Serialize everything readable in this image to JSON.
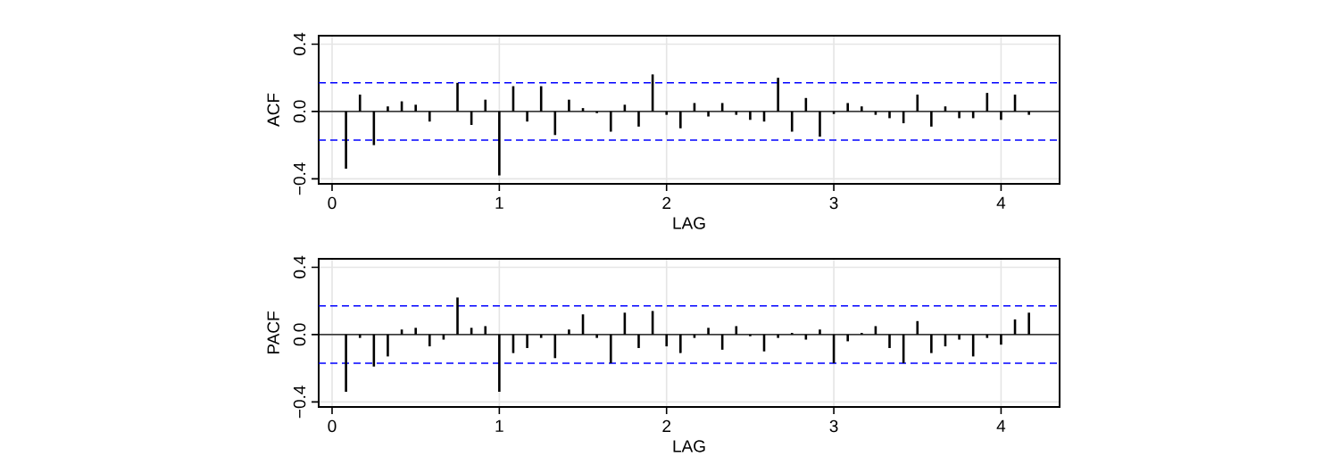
{
  "chart_data": [
    {
      "type": "bar",
      "xlabel": "LAG",
      "ylabel": "ACF",
      "color": "#000000",
      "grid": true,
      "x": [
        0.0833,
        0.1667,
        0.25,
        0.3333,
        0.4167,
        0.5,
        0.5833,
        0.6667,
        0.75,
        0.8333,
        0.9167,
        1.0,
        1.0833,
        1.1667,
        1.25,
        1.3333,
        1.4167,
        1.5,
        1.5833,
        1.6667,
        1.75,
        1.8333,
        1.9167,
        2.0,
        2.0833,
        2.1667,
        2.25,
        2.3333,
        2.4167,
        2.5,
        2.5833,
        2.6667,
        2.75,
        2.8333,
        2.9167,
        3.0,
        3.0833,
        3.1667,
        3.25,
        3.3333,
        3.4167,
        3.5,
        3.5833,
        3.6667,
        3.75,
        3.8333,
        3.9167,
        4.0,
        4.0833,
        4.1667
      ],
      "values": [
        -0.34,
        0.1,
        -0.2,
        0.03,
        0.06,
        0.04,
        -0.06,
        0.0,
        0.17,
        -0.08,
        0.07,
        -0.38,
        0.15,
        -0.06,
        0.15,
        -0.14,
        0.07,
        0.02,
        -0.01,
        -0.12,
        0.04,
        -0.09,
        0.22,
        -0.02,
        -0.1,
        0.05,
        -0.03,
        0.05,
        -0.02,
        -0.05,
        -0.06,
        0.2,
        -0.12,
        0.08,
        -0.15,
        -0.015,
        0.05,
        0.03,
        -0.02,
        -0.04,
        -0.07,
        0.1,
        -0.09,
        0.03,
        -0.04,
        -0.04,
        0.11,
        -0.05,
        0.1,
        -0.02
      ],
      "xlim": [
        -0.08,
        4.35
      ],
      "ylim": [
        -0.43,
        0.45
      ],
      "xticks": [
        0,
        1,
        2,
        3,
        4
      ],
      "yticks": [
        {
          "value": -0.4,
          "label": "−0.4"
        },
        {
          "value": 0,
          "label": "0.0"
        },
        {
          "value": 0.4,
          "label": "0.4"
        }
      ],
      "ref_lines": [
        {
          "axis": "y",
          "value": 0,
          "color": "#000000",
          "line_style": "solid"
        },
        {
          "axis": "y",
          "value": 0.17,
          "color": "#0000ff",
          "line_style": "dashed"
        },
        {
          "axis": "y",
          "value": -0.17,
          "color": "#0000ff",
          "line_style": "dashed"
        }
      ]
    },
    {
      "type": "bar",
      "xlabel": "LAG",
      "ylabel": "PACF",
      "color": "#000000",
      "grid": true,
      "x": [
        0.0833,
        0.1667,
        0.25,
        0.3333,
        0.4167,
        0.5,
        0.5833,
        0.6667,
        0.75,
        0.8333,
        0.9167,
        1.0,
        1.0833,
        1.1667,
        1.25,
        1.3333,
        1.4167,
        1.5,
        1.5833,
        1.6667,
        1.75,
        1.8333,
        1.9167,
        2.0,
        2.0833,
        2.1667,
        2.25,
        2.3333,
        2.4167,
        2.5,
        2.5833,
        2.6667,
        2.75,
        2.8333,
        2.9167,
        3.0,
        3.0833,
        3.1667,
        3.25,
        3.3333,
        3.4167,
        3.5,
        3.5833,
        3.6667,
        3.75,
        3.8333,
        3.9167,
        4.0,
        4.0833,
        4.1667
      ],
      "values": [
        -0.34,
        -0.02,
        -0.19,
        -0.13,
        0.03,
        0.04,
        -0.07,
        -0.03,
        0.22,
        0.04,
        0.05,
        -0.34,
        -0.11,
        -0.08,
        -0.02,
        -0.14,
        0.03,
        0.12,
        -0.02,
        -0.17,
        0.13,
        -0.08,
        0.14,
        -0.07,
        -0.11,
        -0.02,
        0.04,
        -0.09,
        0.05,
        -0.01,
        -0.1,
        -0.02,
        0.01,
        -0.03,
        0.03,
        -0.17,
        -0.04,
        0.01,
        0.05,
        -0.08,
        -0.17,
        0.08,
        -0.11,
        -0.07,
        -0.03,
        -0.13,
        -0.02,
        -0.06,
        0.09,
        0.13
      ],
      "xlim": [
        -0.08,
        4.35
      ],
      "ylim": [
        -0.43,
        0.45
      ],
      "xticks": [
        0,
        1,
        2,
        3,
        4
      ],
      "yticks": [
        {
          "value": -0.4,
          "label": "−0.4"
        },
        {
          "value": 0,
          "label": "0.0"
        },
        {
          "value": 0.4,
          "label": "0.4"
        }
      ],
      "ref_lines": [
        {
          "axis": "y",
          "value": 0,
          "color": "#000000",
          "line_style": "solid"
        },
        {
          "axis": "y",
          "value": 0.17,
          "color": "#0000ff",
          "line_style": "dashed"
        },
        {
          "axis": "y",
          "value": -0.17,
          "color": "#0000ff",
          "line_style": "dashed"
        }
      ]
    }
  ]
}
